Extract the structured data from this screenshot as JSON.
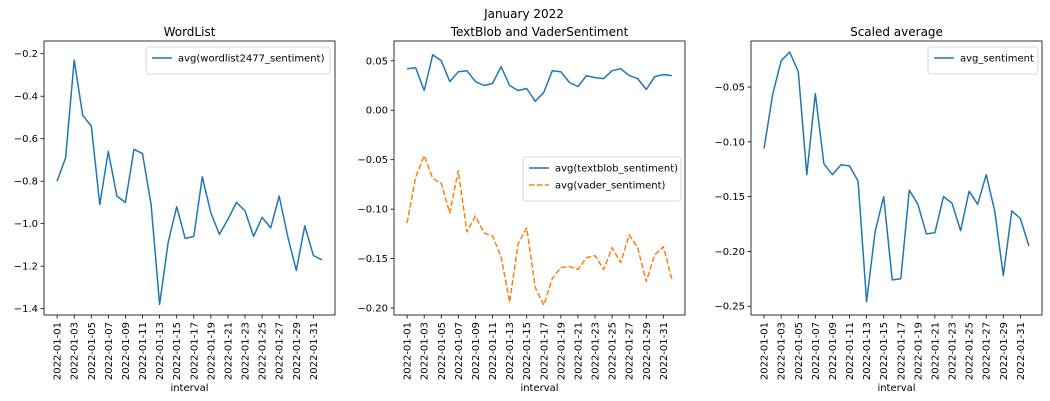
{
  "figure": {
    "suptitle": "January 2022"
  },
  "chart_data": [
    {
      "type": "line",
      "title": "WordList",
      "xlabel": "interval",
      "ylabel": "",
      "x_tick_labels": [
        "2022-01-01",
        "2022-01-03",
        "2022-01-05",
        "2022-01-07",
        "2022-01-09",
        "2022-01-11",
        "2022-01-13",
        "2022-01-15",
        "2022-01-17",
        "2022-01-19",
        "2022-01-21",
        "2022-01-23",
        "2022-01-25",
        "2022-01-27",
        "2022-01-29",
        "2022-01-31"
      ],
      "y_ticks": [
        -1.4,
        -1.2,
        -1.0,
        -0.8,
        -0.6,
        -0.4,
        -0.2
      ],
      "y_tick_labels": [
        "−1.4",
        "−1.2",
        "−1.0",
        "−0.8",
        "−0.6",
        "−0.4",
        "−0.2"
      ],
      "ylim": [
        -1.43,
        -0.14
      ],
      "legend": "top-right",
      "series": [
        {
          "name": "avg(wordlist2477_sentiment)",
          "color": "#1f77b4",
          "dash": "solid",
          "values": [
            -0.8,
            -0.69,
            -0.23,
            -0.49,
            -0.54,
            -0.91,
            -0.66,
            -0.87,
            -0.9,
            -0.65,
            -0.67,
            -0.91,
            -1.38,
            -1.09,
            -0.92,
            -1.07,
            -1.06,
            -0.78,
            -0.95,
            -1.05,
            -0.98,
            -0.9,
            -0.94,
            -1.06,
            -0.97,
            -1.02,
            -0.87,
            -1.06,
            -1.22,
            -1.01,
            -1.15,
            -1.17
          ]
        }
      ]
    },
    {
      "type": "line",
      "title": "TextBlob and VaderSentiment",
      "xlabel": "interval",
      "ylabel": "",
      "x_tick_labels": [
        "2022-01-01",
        "2022-01-03",
        "2022-01-05",
        "2022-01-07",
        "2022-01-09",
        "2022-01-11",
        "2022-01-13",
        "2022-01-15",
        "2022-01-17",
        "2022-01-19",
        "2022-01-21",
        "2022-01-23",
        "2022-01-25",
        "2022-01-27",
        "2022-01-29",
        "2022-01-31"
      ],
      "y_ticks": [
        -0.2,
        -0.15,
        -0.1,
        -0.05,
        0.0,
        0.05
      ],
      "y_tick_labels": [
        "−0.20",
        "−0.15",
        "−0.10",
        "−0.05",
        "0.00",
        "0.05"
      ],
      "ylim": [
        -0.207,
        0.07
      ],
      "legend": "center-right",
      "series": [
        {
          "name": "avg(textblob_sentiment)",
          "color": "#1f77b4",
          "dash": "solid",
          "values": [
            0.042,
            0.043,
            0.02,
            0.056,
            0.05,
            0.029,
            0.039,
            0.04,
            0.029,
            0.025,
            0.027,
            0.044,
            0.025,
            0.02,
            0.022,
            0.009,
            0.018,
            0.04,
            0.039,
            0.028,
            0.024,
            0.035,
            0.033,
            0.032,
            0.04,
            0.042,
            0.035,
            0.032,
            0.021,
            0.034,
            0.036,
            0.035
          ]
        },
        {
          "name": "avg(vader_sentiment)",
          "color": "#ff7f0e",
          "dash": "dashed",
          "values": [
            -0.114,
            -0.068,
            -0.046,
            -0.069,
            -0.074,
            -0.104,
            -0.061,
            -0.123,
            -0.107,
            -0.124,
            -0.127,
            -0.148,
            -0.194,
            -0.135,
            -0.119,
            -0.179,
            -0.197,
            -0.17,
            -0.159,
            -0.158,
            -0.161,
            -0.149,
            -0.147,
            -0.161,
            -0.139,
            -0.154,
            -0.126,
            -0.139,
            -0.173,
            -0.146,
            -0.138,
            -0.171
          ]
        }
      ]
    },
    {
      "type": "line",
      "title": "Scaled average",
      "xlabel": "interval",
      "ylabel": "",
      "x_tick_labels": [
        "2022-01-01",
        "2022-01-03",
        "2022-01-05",
        "2022-01-07",
        "2022-01-09",
        "2022-01-11",
        "2022-01-13",
        "2022-01-15",
        "2022-01-17",
        "2022-01-19",
        "2022-01-21",
        "2022-01-23",
        "2022-01-25",
        "2022-01-27",
        "2022-01-29",
        "2022-01-31"
      ],
      "y_ticks": [
        -0.25,
        -0.2,
        -0.15,
        -0.1,
        -0.05
      ],
      "y_tick_labels": [
        "−0.25",
        "−0.20",
        "−0.15",
        "−0.10",
        "−0.05"
      ],
      "ylim": [
        -0.258,
        -0.008
      ],
      "legend": "top-right",
      "series": [
        {
          "name": "avg_sentiment",
          "color": "#1f77b4",
          "dash": "solid",
          "values": [
            -0.106,
            -0.057,
            -0.026,
            -0.018,
            -0.036,
            -0.13,
            -0.056,
            -0.12,
            -0.13,
            -0.121,
            -0.122,
            -0.136,
            -0.246,
            -0.182,
            -0.15,
            -0.226,
            -0.225,
            -0.144,
            -0.157,
            -0.184,
            -0.183,
            -0.15,
            -0.156,
            -0.181,
            -0.145,
            -0.157,
            -0.13,
            -0.163,
            -0.222,
            -0.163,
            -0.17,
            -0.195
          ]
        }
      ]
    }
  ]
}
